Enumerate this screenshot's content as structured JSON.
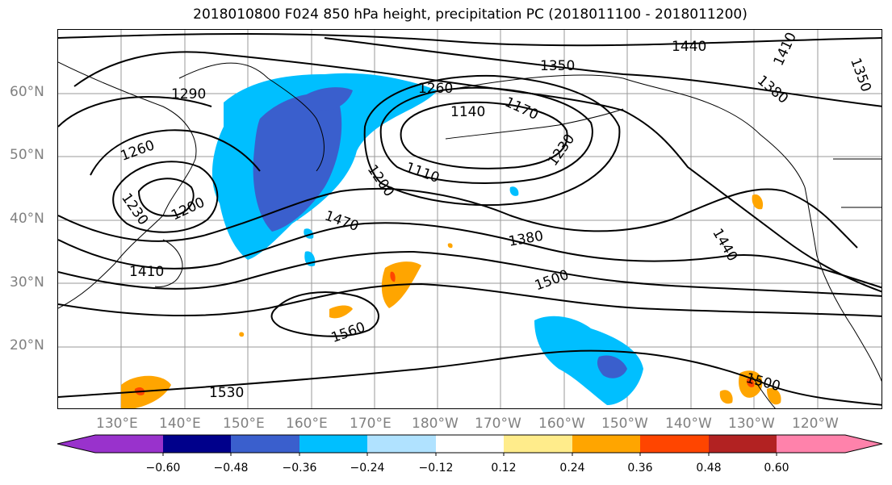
{
  "title": "2018010800 F024 850 hPa height, precipitation PC (2018011100 - 2018011200)",
  "lat_labels": [
    "60°N",
    "50°N",
    "40°N",
    "30°N",
    "20°N"
  ],
  "lon_labels": [
    "130°E",
    "140°E",
    "150°E",
    "160°E",
    "170°E",
    "180°W",
    "170°W",
    "160°W",
    "150°W",
    "140°W",
    "130°W",
    "120°W"
  ],
  "contour_labels": [
    "1440",
    "1410",
    "1350",
    "1350",
    "1380",
    "1290",
    "1260",
    "1140",
    "1170",
    "1230",
    "1260",
    "1200",
    "1110",
    "1230",
    "1200",
    "1470",
    "1380",
    "1440",
    "1410",
    "1500",
    "1560",
    "1530",
    "1500"
  ],
  "colorbar": {
    "ticks": [
      "−0.60",
      "−0.48",
      "−0.36",
      "−0.24",
      "−0.12",
      "0.12",
      "0.24",
      "0.36",
      "0.48",
      "0.60"
    ],
    "colors": [
      "#9932cc",
      "#00008b",
      "#3a5fcd",
      "#00bfff",
      "#b0e2ff",
      "#ffffff",
      "#ffec8b",
      "#ffa500",
      "#ff4500",
      "#b22222",
      "#ff82ab"
    ]
  }
}
